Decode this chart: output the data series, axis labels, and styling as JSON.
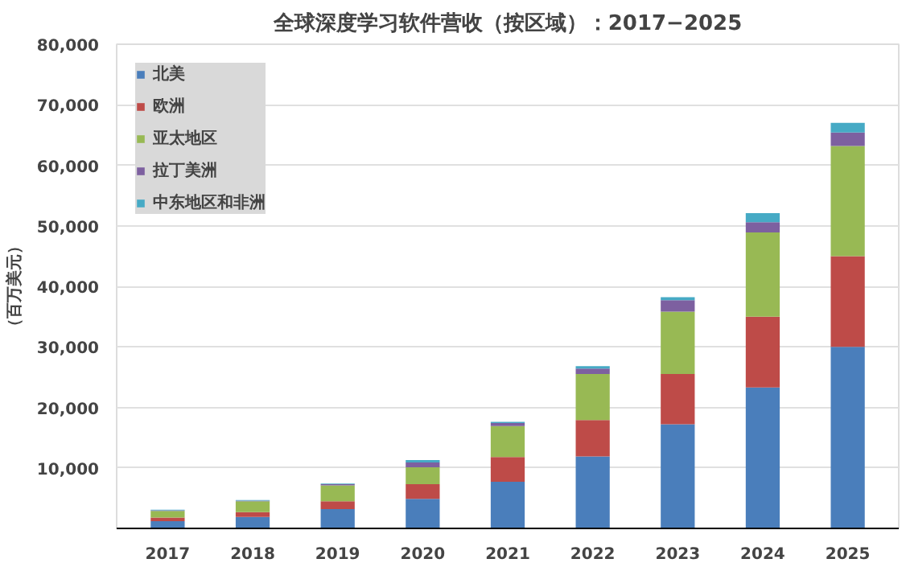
{
  "chart_data": {
    "type": "bar",
    "stacked": true,
    "title": "全球深度学习软件营收（按区域）：2017−2025",
    "ylabel": "（百万美元）",
    "categories": [
      "2017",
      "2018",
      "2019",
      "2020",
      "2021",
      "2022",
      "2023",
      "2024",
      "2025"
    ],
    "series": [
      {
        "name": "北美",
        "color": "#4a7ebb",
        "values": [
          1200,
          1900,
          3200,
          4900,
          7700,
          11900,
          17200,
          23300,
          30000
        ]
      },
      {
        "name": "欧洲",
        "color": "#be4b48",
        "values": [
          600,
          800,
          1300,
          2400,
          4100,
          6000,
          8300,
          11700,
          15000
        ]
      },
      {
        "name": "亚太地区",
        "color": "#98b954",
        "values": [
          1100,
          1800,
          2600,
          2800,
          5100,
          7600,
          10300,
          13900,
          18200
        ]
      },
      {
        "name": "拉丁美洲",
        "color": "#7d60a0",
        "values": [
          100,
          100,
          200,
          800,
          500,
          900,
          1900,
          1700,
          2200
        ]
      },
      {
        "name": "中东地区和非洲",
        "color": "#46aac5",
        "values": [
          100,
          100,
          100,
          400,
          200,
          400,
          500,
          1500,
          1600
        ]
      }
    ],
    "ylim": [
      0,
      80000
    ],
    "yticks": [
      {
        "value": 0,
        "label": null
      },
      {
        "value": 10000,
        "label": "10,000"
      },
      {
        "value": 20000,
        "label": "20,000"
      },
      {
        "value": 30000,
        "label": "30,000"
      },
      {
        "value": 40000,
        "label": "40,000"
      },
      {
        "value": 50000,
        "label": "50,000"
      },
      {
        "value": 60000,
        "label": "60,000"
      },
      {
        "value": 70000,
        "label": "70,000"
      },
      {
        "value": 80000,
        "label": "80,000"
      }
    ],
    "grid": "y",
    "legend": "top left"
  }
}
